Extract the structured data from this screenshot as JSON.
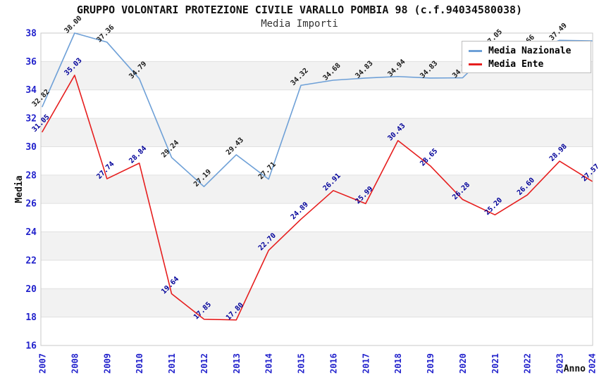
{
  "chart_data": {
    "type": "line",
    "title": "GRUPPO VOLONTARI PROTEZIONE CIVILE VARALLO POMBIA 98 (c.f.94034580038)",
    "subtitle": "Media Importi",
    "xlabel": "Anno",
    "ylabel": "Media",
    "x": [
      "2007",
      "2008",
      "2009",
      "2010",
      "2011",
      "2012",
      "2013",
      "2014",
      "2015",
      "2016",
      "2017",
      "2018",
      "2019",
      "2020",
      "2021",
      "2022",
      "2023",
      "2024"
    ],
    "ylim": [
      16,
      38
    ],
    "ytick_step": 2,
    "grid": "alternating-horizontal-grey-bands",
    "legend_position": "top-right",
    "series": [
      {
        "name": "Media Nazionale",
        "color": "#6ea0d7",
        "label_color": "#1a1a1a",
        "values": [
          32.82,
          38.0,
          37.36,
          34.79,
          29.24,
          27.19,
          29.43,
          27.71,
          34.32,
          34.68,
          34.83,
          34.94,
          34.83,
          34.85,
          37.05,
          36.66,
          37.49,
          37.45
        ],
        "point_labels": [
          "32.82",
          "38.00",
          "37.36",
          "34.79",
          "29.24",
          "27.19",
          "29.43",
          "27.71",
          "34.32",
          "34.68",
          "34.83",
          "34.94",
          "34.83",
          "34.85",
          "37.05",
          "36.66",
          "37.49",
          null
        ]
      },
      {
        "name": "Media Ente",
        "color": "#e61e1e",
        "label_color": "#000099",
        "values": [
          31.05,
          35.03,
          27.74,
          28.84,
          19.64,
          17.85,
          17.8,
          22.7,
          24.89,
          26.91,
          25.99,
          30.43,
          28.65,
          26.28,
          25.2,
          26.6,
          28.98,
          27.57
        ],
        "point_labels": [
          "31.05",
          "35.03",
          "27.74",
          "28.84",
          "19.64",
          "17.85",
          "17.80",
          "22.70",
          "24.89",
          "26.91",
          "25.99",
          "30.43",
          "28.65",
          "26.28",
          "25.20",
          "26.60",
          "28.98",
          "27.57"
        ]
      }
    ],
    "tick_color": "#2222cc",
    "band_color": "#f2f2f2",
    "gridline_color": "#e0e0e0",
    "plot_border_color": "#c9c9c9"
  }
}
